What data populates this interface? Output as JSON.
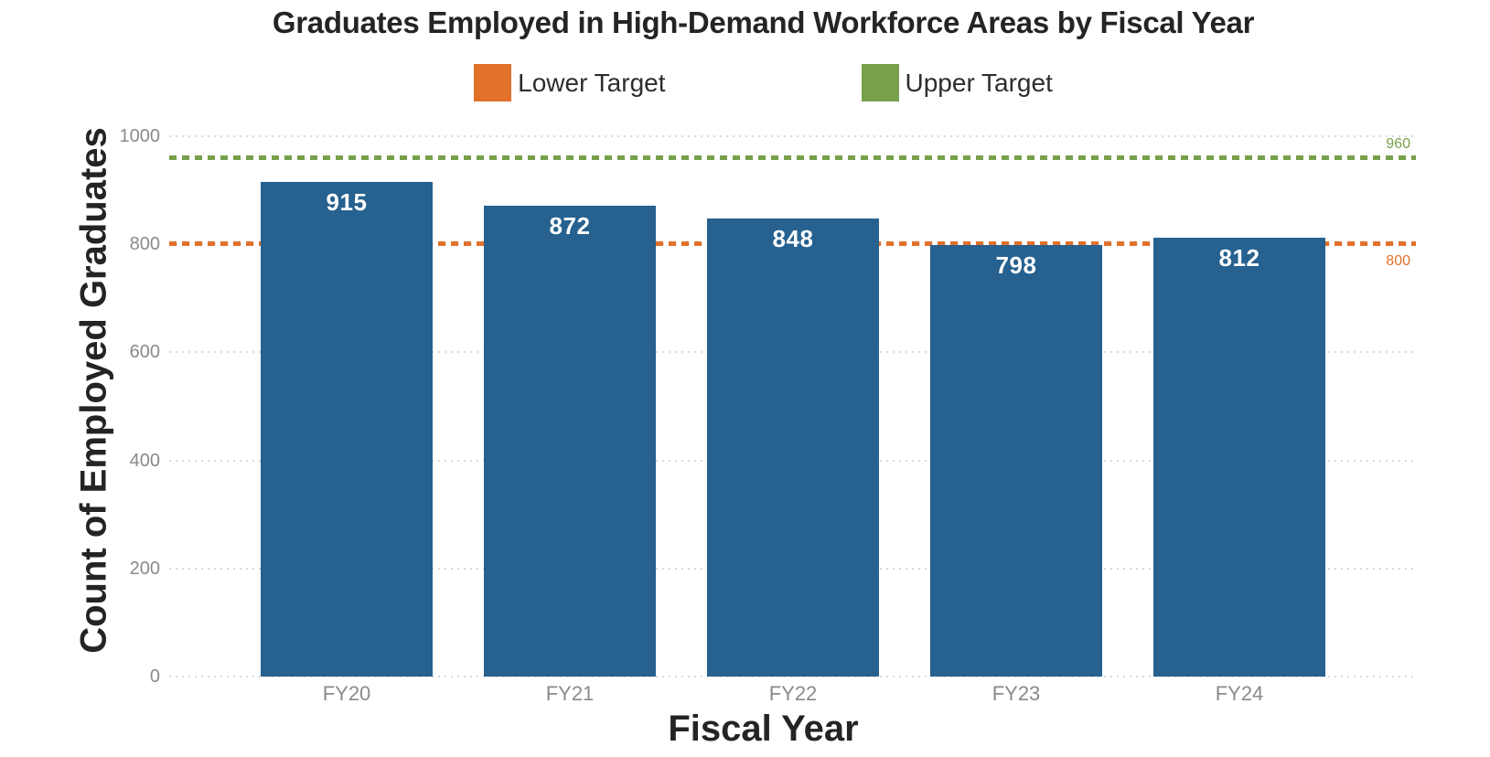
{
  "chart_data": {
    "type": "bar",
    "title": "Graduates Employed in High-Demand Workforce Areas by Fiscal Year",
    "xlabel": "Fiscal Year",
    "ylabel": "Count of Employed Graduates",
    "categories": [
      "FY20",
      "FY21",
      "FY22",
      "FY23",
      "FY24"
    ],
    "values": [
      915,
      872,
      848,
      798,
      812
    ],
    "bar_color": "#26618F",
    "value_label_color": "#FFFFFF",
    "ylim": [
      0,
      1000
    ],
    "yticks": [
      0,
      200,
      400,
      600,
      800,
      1000
    ],
    "grid": "horizontal dotted",
    "gridline_color": "#D8D8D8",
    "tick_label_color": "#8A8A8A",
    "legend_position": "top-center",
    "legend": [
      {
        "label": "Lower Target",
        "color": "#E2712B"
      },
      {
        "label": "Upper Target",
        "color": "#76A04A"
      }
    ],
    "reference_lines": [
      {
        "name": "Lower Target",
        "value": 800,
        "label": "800",
        "color": "#E2712B",
        "style": "dotted",
        "label_position": "below-right"
      },
      {
        "name": "Upper Target",
        "value": 960,
        "label": "960",
        "color": "#76A04A",
        "style": "dotted",
        "label_position": "above-right"
      }
    ]
  }
}
